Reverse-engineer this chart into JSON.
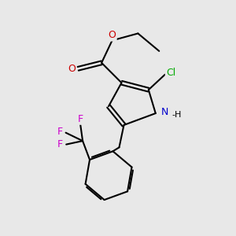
{
  "background_color": "#e8e8e8",
  "bond_color": "#000000",
  "bond_lw": 1.5,
  "dbo": 0.08,
  "atom_colors": {
    "O": "#cc0000",
    "N": "#0000cc",
    "Cl": "#00aa00",
    "F": "#cc00cc"
  },
  "xlim": [
    0,
    10
  ],
  "ylim": [
    0,
    10
  ],
  "figsize": [
    3.0,
    3.0
  ],
  "dpi": 100
}
